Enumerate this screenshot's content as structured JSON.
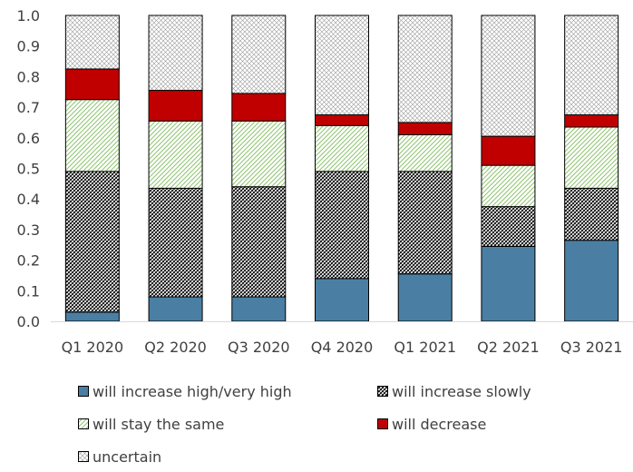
{
  "chart_data": {
    "type": "bar",
    "stacked": true,
    "categories": [
      "Q1 2020",
      "Q2 2020",
      "Q3 2020",
      "Q4 2020",
      "Q1 2021",
      "Q2 2021",
      "Q3 2021"
    ],
    "ylim": [
      0,
      1.0
    ],
    "yticks": [
      "0.0",
      "0.1",
      "0.2",
      "0.3",
      "0.4",
      "0.5",
      "0.6",
      "0.7",
      "0.8",
      "0.9",
      "1.0"
    ],
    "grid": false,
    "legend_position": "bottom",
    "series": [
      {
        "name": "will increase high/very high",
        "color": "#4a7fa3",
        "pattern": "solid",
        "values": [
          0.03,
          0.08,
          0.08,
          0.14,
          0.155,
          0.245,
          0.265
        ]
      },
      {
        "name": "will increase slowly",
        "color": "#000000",
        "pattern": "dense-diagonal-crosshatch",
        "values": [
          0.46,
          0.355,
          0.36,
          0.35,
          0.335,
          0.13,
          0.17
        ]
      },
      {
        "name": "will stay the same",
        "color": "#8fc46f",
        "pattern": "green-diagonal-hatch",
        "values": [
          0.235,
          0.22,
          0.215,
          0.15,
          0.12,
          0.135,
          0.2
        ]
      },
      {
        "name": "will decrease",
        "color": "#c00000",
        "pattern": "solid",
        "values": [
          0.1,
          0.1,
          0.09,
          0.035,
          0.04,
          0.095,
          0.04
        ]
      },
      {
        "name": "uncertain",
        "color": "#7f7f7f",
        "pattern": "light-diagonal-crosshatch",
        "values": [
          0.175,
          0.245,
          0.255,
          0.325,
          0.35,
          0.395,
          0.325
        ]
      }
    ]
  }
}
